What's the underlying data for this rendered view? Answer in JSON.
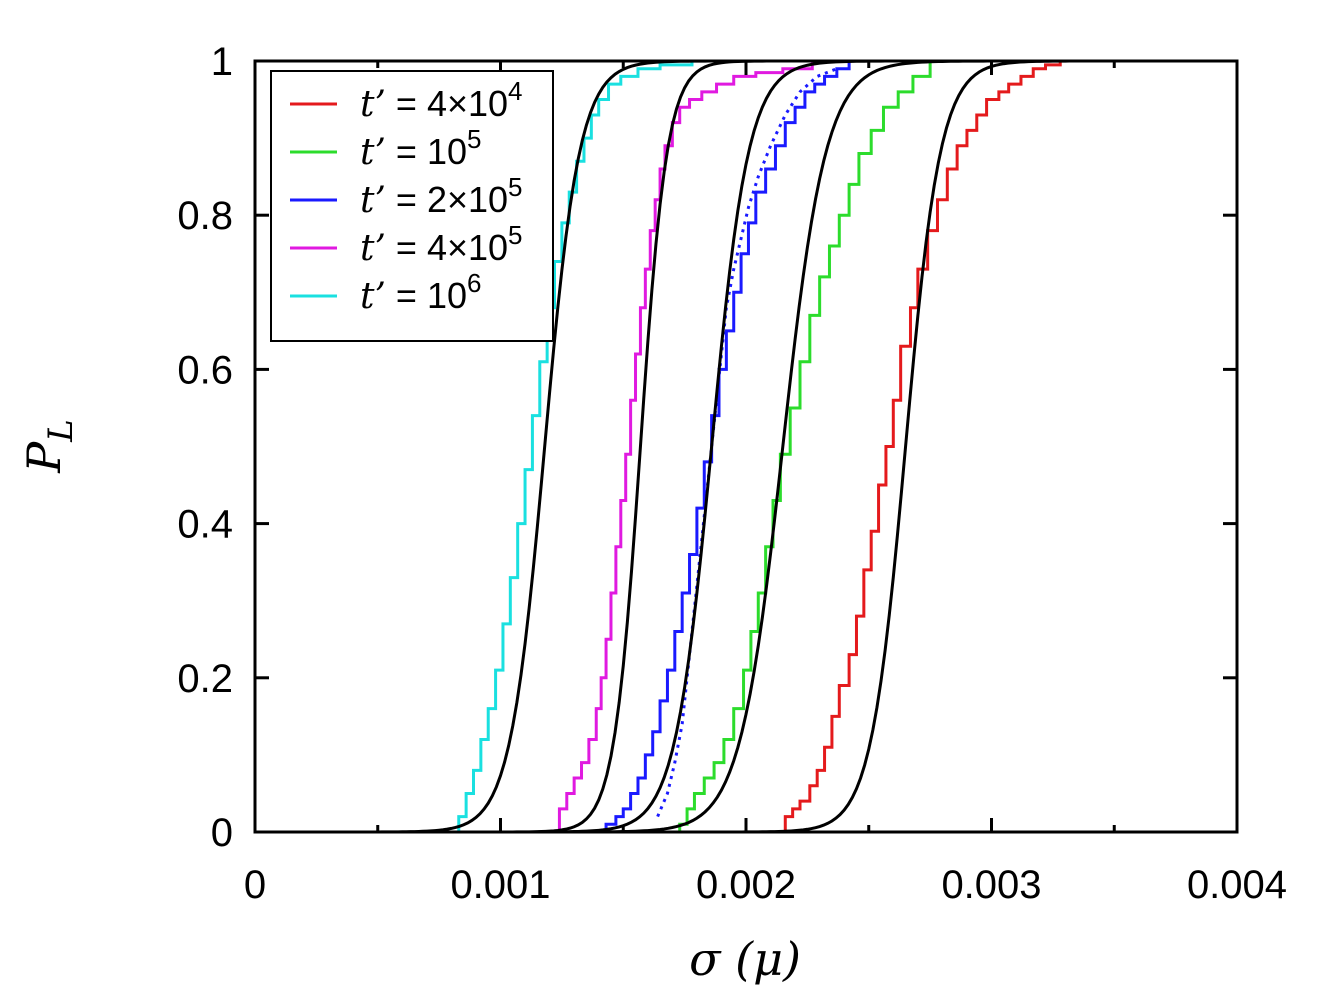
{
  "chart_data": {
    "type": "line",
    "xlabel": "σ (μ)",
    "ylabel": "P",
    "ylabel_sub": "L",
    "xlim": [
      0,
      0.004
    ],
    "ylim": [
      0,
      1
    ],
    "x_ticks": [
      0,
      0.001,
      0.002,
      0.003,
      0.004
    ],
    "x_tick_labels": [
      "0",
      "0.001",
      "0.002",
      "0.003",
      "0.004"
    ],
    "y_ticks": [
      0,
      0.2,
      0.4,
      0.6,
      0.8,
      1
    ],
    "y_tick_labels": [
      "0",
      "0.2",
      "0.4",
      "0.6",
      "0.8",
      "1"
    ],
    "grid": false,
    "legend_position": "top-left",
    "series": [
      {
        "name": "t’ = 4×10^4",
        "legend": {
          "prefix": "t’",
          "eq": " = ",
          "base": "4×10",
          "exp": "4"
        },
        "color": "#e41a1c",
        "style": "step",
        "x": [
          0.00214,
          0.00216,
          0.00219,
          0.00222,
          0.00226,
          0.00229,
          0.00232,
          0.00235,
          0.00238,
          0.00242,
          0.00245,
          0.00248,
          0.00251,
          0.00254,
          0.00257,
          0.0026,
          0.00263,
          0.00267,
          0.0027,
          0.00274,
          0.00278,
          0.00282,
          0.00286,
          0.0029,
          0.00294,
          0.00298,
          0.00303,
          0.00307,
          0.00312,
          0.00317,
          0.00322,
          0.00328
        ],
        "y": [
          0.0,
          0.02,
          0.03,
          0.04,
          0.06,
          0.08,
          0.11,
          0.15,
          0.19,
          0.23,
          0.28,
          0.34,
          0.39,
          0.45,
          0.5,
          0.56,
          0.63,
          0.68,
          0.73,
          0.78,
          0.82,
          0.86,
          0.89,
          0.91,
          0.93,
          0.95,
          0.96,
          0.97,
          0.98,
          0.99,
          0.995,
          1.0
        ]
      },
      {
        "name": "t’ = 10^5",
        "legend": {
          "prefix": "t’",
          "eq": " = ",
          "base": "10",
          "exp": "5"
        },
        "color": "#2cdc2c",
        "style": "step",
        "x": [
          0.00171,
          0.00173,
          0.00176,
          0.00179,
          0.00183,
          0.00187,
          0.00191,
          0.00195,
          0.00199,
          0.00202,
          0.00205,
          0.00208,
          0.00211,
          0.00214,
          0.00218,
          0.00222,
          0.00226,
          0.0023,
          0.00234,
          0.00238,
          0.00242,
          0.00246,
          0.00251,
          0.00256,
          0.00262,
          0.00268,
          0.00275
        ],
        "y": [
          0.0,
          0.01,
          0.03,
          0.05,
          0.07,
          0.09,
          0.12,
          0.16,
          0.21,
          0.26,
          0.31,
          0.37,
          0.43,
          0.49,
          0.55,
          0.61,
          0.67,
          0.72,
          0.76,
          0.8,
          0.84,
          0.88,
          0.91,
          0.94,
          0.96,
          0.98,
          1.0
        ]
      },
      {
        "name": "t’ = 2×10^5",
        "legend": {
          "prefix": "t’",
          "eq": " = ",
          "base": "2×10",
          "exp": "5"
        },
        "color": "#1a1aff",
        "style": "step",
        "x": [
          0.0014,
          0.00143,
          0.00147,
          0.0015,
          0.00153,
          0.00156,
          0.00159,
          0.00162,
          0.00165,
          0.00168,
          0.00171,
          0.00174,
          0.00177,
          0.0018,
          0.00183,
          0.00186,
          0.00189,
          0.00192,
          0.00195,
          0.00198,
          0.00201,
          0.00204,
          0.00208,
          0.00212,
          0.00216,
          0.0022,
          0.00224,
          0.00228,
          0.00232,
          0.00237,
          0.00242
        ],
        "y": [
          0.0,
          0.01,
          0.02,
          0.03,
          0.05,
          0.07,
          0.1,
          0.13,
          0.17,
          0.21,
          0.26,
          0.31,
          0.36,
          0.42,
          0.48,
          0.54,
          0.6,
          0.65,
          0.7,
          0.75,
          0.79,
          0.83,
          0.86,
          0.89,
          0.92,
          0.94,
          0.96,
          0.97,
          0.98,
          0.99,
          1.0
        ]
      },
      {
        "name": "t’ = 4×10^5",
        "legend": {
          "prefix": "t’",
          "eq": " = ",
          "base": "4×10",
          "exp": "5"
        },
        "color": "#e01ae0",
        "style": "step",
        "x": [
          0.00122,
          0.00124,
          0.00127,
          0.0013,
          0.00133,
          0.00136,
          0.00139,
          0.00141,
          0.00143,
          0.00145,
          0.00147,
          0.00149,
          0.00151,
          0.00153,
          0.00155,
          0.00157,
          0.00159,
          0.00161,
          0.00163,
          0.00165,
          0.00167,
          0.0017,
          0.00173,
          0.00177,
          0.00182,
          0.00188,
          0.00195,
          0.00204,
          0.00215,
          0.00227
        ],
        "y": [
          0.0,
          0.03,
          0.05,
          0.07,
          0.09,
          0.12,
          0.16,
          0.2,
          0.25,
          0.31,
          0.37,
          0.43,
          0.49,
          0.56,
          0.62,
          0.68,
          0.73,
          0.78,
          0.82,
          0.86,
          0.89,
          0.92,
          0.94,
          0.95,
          0.96,
          0.97,
          0.98,
          0.985,
          0.99,
          1.0
        ]
      },
      {
        "name": "t’ = 10^6",
        "legend": {
          "prefix": "t’",
          "eq": " = ",
          "base": "10",
          "exp": "6"
        },
        "color": "#1ae0e0",
        "style": "step",
        "x": [
          0.0008,
          0.00083,
          0.00086,
          0.00089,
          0.00092,
          0.00095,
          0.00098,
          0.00101,
          0.00104,
          0.00107,
          0.0011,
          0.00113,
          0.00116,
          0.00119,
          0.00122,
          0.00125,
          0.00128,
          0.00131,
          0.00134,
          0.00137,
          0.0014,
          0.00144,
          0.00149,
          0.00156,
          0.00165,
          0.00178
        ],
        "y": [
          0.0,
          0.02,
          0.05,
          0.08,
          0.12,
          0.16,
          0.21,
          0.27,
          0.33,
          0.4,
          0.47,
          0.54,
          0.61,
          0.68,
          0.74,
          0.79,
          0.83,
          0.87,
          0.9,
          0.93,
          0.95,
          0.97,
          0.98,
          0.99,
          0.995,
          1.0
        ]
      },
      {
        "name": "",
        "color": "#1a1aff",
        "style": "dotted",
        "x": [
          0.00164,
          0.00168,
          0.00171,
          0.00174,
          0.00176,
          0.00178,
          0.0018,
          0.00182,
          0.00184,
          0.00186,
          0.00188,
          0.0019,
          0.00192,
          0.00195,
          0.00198,
          0.00201,
          0.00205,
          0.0021,
          0.00216,
          0.00222,
          0.00229,
          0.00237
        ],
        "y": [
          0.02,
          0.05,
          0.09,
          0.14,
          0.2,
          0.26,
          0.32,
          0.38,
          0.44,
          0.5,
          0.56,
          0.62,
          0.68,
          0.73,
          0.77,
          0.81,
          0.85,
          0.89,
          0.93,
          0.96,
          0.98,
          0.99
        ]
      }
    ],
    "fit_curves": [
      {
        "color": "#000000",
        "center": 0.00265,
        "width": 0.00017
      },
      {
        "color": "#000000",
        "center": 0.00215,
        "width": 0.00021
      },
      {
        "color": "#000000",
        "center": 0.00186,
        "width": 0.00018
      },
      {
        "color": "#000000",
        "center": 0.00157,
        "width": 0.00013
      },
      {
        "color": "#000000",
        "center": 0.00118,
        "width": 0.00017
      }
    ]
  }
}
